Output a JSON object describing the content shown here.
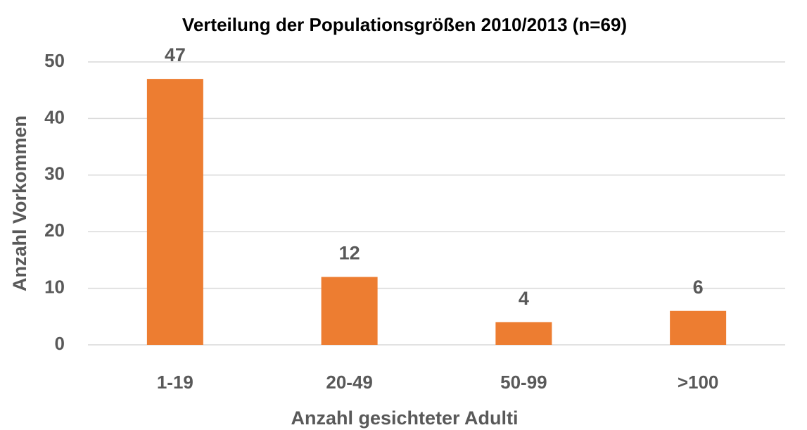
{
  "chart_data": {
    "type": "bar",
    "title": "Verteilung der Populationsgrößen 2010/2013 (n=69)",
    "x_label": "Anzahl gesichteter Adulti",
    "y_label": "Anzahl Vorkommen",
    "categories": [
      "1-19",
      "20-49",
      "50-99",
      ">100"
    ],
    "values": [
      47,
      12,
      4,
      6
    ],
    "color": "#ed7d31",
    "ylim": [
      0,
      50
    ],
    "yticks": [
      0,
      10,
      20,
      30,
      40,
      50
    ],
    "grid": true
  }
}
